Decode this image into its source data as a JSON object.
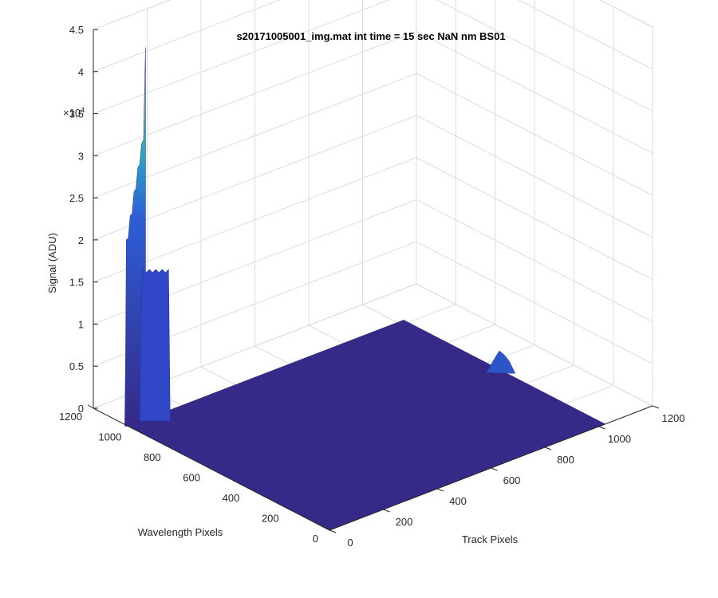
{
  "chart_data": {
    "type": "surface",
    "title": "s20171005001_img.mat int time = 15 sec   NaN nm BS01",
    "xlabel": "Track Pixels",
    "ylabel": "Wavelength Pixels",
    "zlabel": "Signal (ADU)",
    "z_exponent_label": "×10",
    "z_exponent_power": "4",
    "x_ticks": [
      "0",
      "200",
      "400",
      "600",
      "800",
      "1000",
      "1200"
    ],
    "y_ticks": [
      "0",
      "200",
      "400",
      "600",
      "800",
      "1000",
      "1200"
    ],
    "z_ticks": [
      "0",
      "0.5",
      "1",
      "1.5",
      "2",
      "2.5",
      "3",
      "3.5",
      "4",
      "4.5"
    ],
    "xlim": [
      0,
      1200
    ],
    "ylim": [
      0,
      1200
    ],
    "zlim": [
      0,
      45000
    ],
    "grid": true,
    "baseline": {
      "x_range": [
        0,
        1024
      ],
      "y_range": [
        0,
        1024
      ],
      "z": 0
    },
    "features": [
      {
        "name": "main peak",
        "x": 0,
        "y": 1024,
        "peak": 45000
      },
      {
        "name": "shoulder",
        "x": 50,
        "y": 1024,
        "peak": 18000
      },
      {
        "name": "small bump",
        "x": 1024,
        "y": 530,
        "peak": 2300
      }
    ],
    "colors": {
      "low": "#352a87",
      "mid": "#2d5dd6",
      "high": "#e6e23a"
    }
  }
}
